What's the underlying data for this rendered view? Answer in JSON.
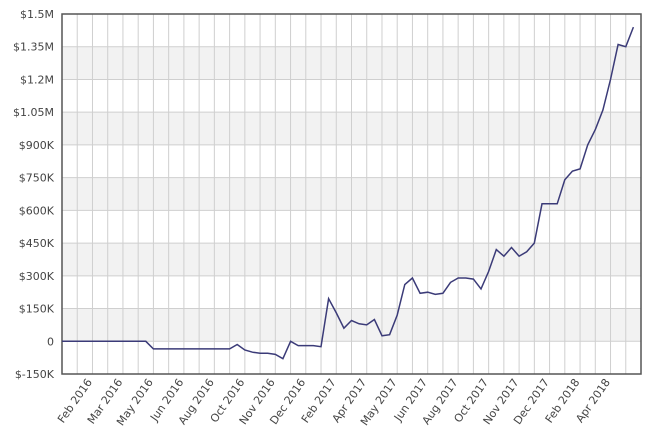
{
  "chart_data": {
    "type": "line",
    "categories": [
      null,
      null,
      null,
      null,
      "Feb 2016",
      null,
      null,
      null,
      "Mar 2016",
      null,
      null,
      null,
      "May 2016",
      null,
      null,
      null,
      "Jun 2016",
      null,
      null,
      null,
      "Aug 2016",
      null,
      null,
      null,
      "Oct 2016",
      null,
      null,
      null,
      "Nov 2016",
      null,
      null,
      null,
      "Dec 2016",
      null,
      null,
      null,
      "Feb 2017",
      null,
      null,
      null,
      "Apr 2017",
      null,
      null,
      null,
      "May 2017",
      null,
      null,
      null,
      "Jun 2017",
      null,
      null,
      null,
      "Aug 2017",
      null,
      null,
      null,
      "Oct 2017",
      null,
      null,
      null,
      "Nov 2017",
      null,
      null,
      null,
      "Dec 2017",
      null,
      null,
      null,
      "Feb 2018",
      null,
      null,
      null,
      "Apr 2018",
      null,
      null,
      null,
      null
    ],
    "series": [
      {
        "color": "#3b3b78",
        "values": [
          0,
          0,
          0,
          0,
          0,
          0,
          0,
          0,
          0,
          0,
          0,
          0,
          -35000,
          -35000,
          -35000,
          -35000,
          -35000,
          -35000,
          -35000,
          -35000,
          -35000,
          -35000,
          -35000,
          -15000,
          -40000,
          -50000,
          -55000,
          -55000,
          -60000,
          -80000,
          0,
          -20000,
          -20000,
          -20000,
          -25000,
          195000,
          130000,
          60000,
          95000,
          80000,
          75000,
          100000,
          25000,
          30000,
          120000,
          260000,
          290000,
          220000,
          225000,
          215000,
          220000,
          270000,
          290000,
          290000,
          285000,
          240000,
          320000,
          420000,
          390000,
          430000,
          390000,
          410000,
          450000,
          630000,
          630000,
          630000,
          740000,
          780000,
          790000,
          900000,
          970000,
          1060000,
          1200000,
          1360000,
          1350000,
          1440000,
          null
        ]
      }
    ],
    "ylim": [
      -150000,
      1500000
    ],
    "yticks": [
      {
        "value": -150000,
        "label": "$-150K"
      },
      0,
      {
        "value": 150000,
        "label": "$150K"
      },
      {
        "value": 300000,
        "label": "$300K"
      },
      {
        "value": 450000,
        "label": "$450K"
      },
      {
        "value": 600000,
        "label": "$600K"
      },
      {
        "value": 750000,
        "label": "$750K"
      },
      {
        "value": 900000,
        "label": "$900K"
      },
      {
        "value": 1050000,
        "label": "$1.05M"
      },
      {
        "value": 1200000,
        "label": "$1.2M"
      },
      {
        "value": 1350000,
        "label": "$1.35M"
      },
      {
        "value": 1500000,
        "label": "$1.5M"
      }
    ],
    "grid": true
  }
}
